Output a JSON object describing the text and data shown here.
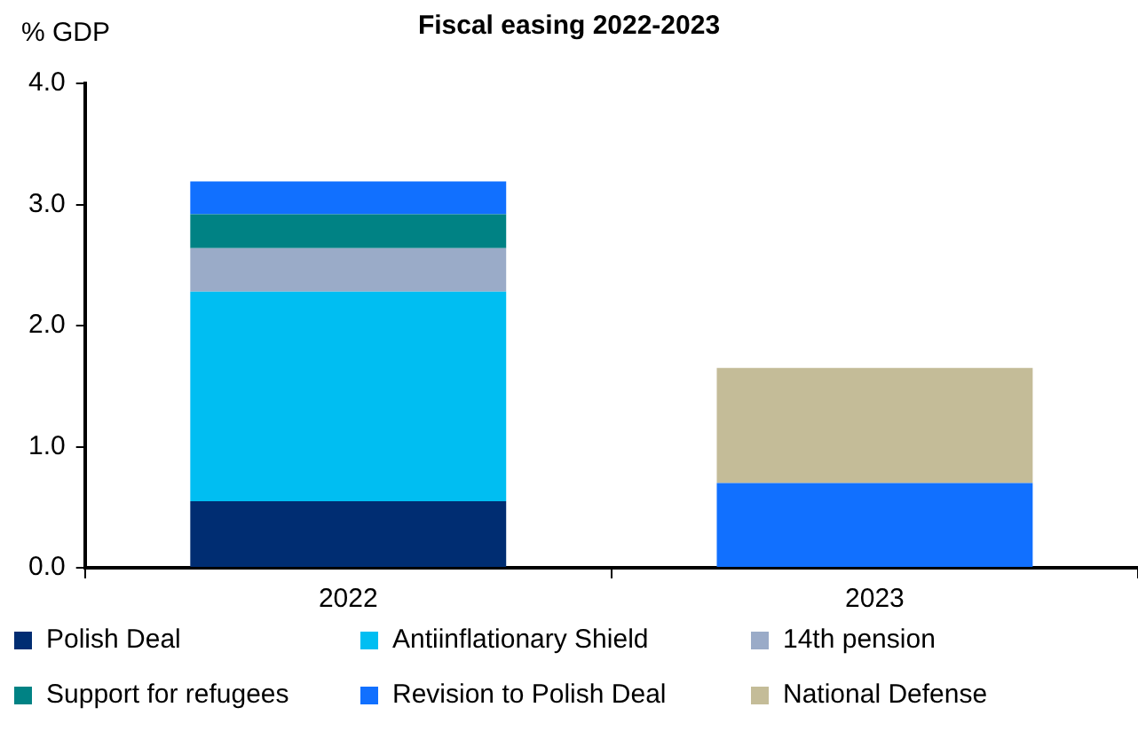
{
  "chart_data": {
    "type": "bar",
    "title": "Fiscal easing 2022-2023",
    "ylabel": "% GDP",
    "categories": [
      "2022",
      "2023"
    ],
    "stacked": true,
    "ylim": [
      0,
      4
    ],
    "yticks": [
      {
        "value": 0,
        "label": "0.0"
      },
      {
        "value": 1,
        "label": "1.0"
      },
      {
        "value": 2,
        "label": "2.0"
      },
      {
        "value": 3,
        "label": "3.0"
      },
      {
        "value": 4,
        "label": "4.0"
      }
    ],
    "grid": false,
    "legend": "bottom",
    "series": [
      {
        "name": "Polish Deal",
        "color": "#002d72",
        "values": [
          0.55,
          null
        ]
      },
      {
        "name": "Antiinflationary Shield",
        "color": "#00bef2",
        "values": [
          1.73,
          null
        ]
      },
      {
        "name": "14th pension",
        "color": "#9aabc8",
        "values": [
          0.36,
          null
        ]
      },
      {
        "name": "Support for refugees",
        "color": "#008284",
        "values": [
          0.28,
          null
        ]
      },
      {
        "name": "Revision to Polish Deal",
        "color": "#1170ff",
        "values": [
          0.27,
          0.7
        ]
      },
      {
        "name": "National Defense",
        "color": "#c4bc98",
        "values": [
          null,
          0.95
        ]
      }
    ]
  }
}
